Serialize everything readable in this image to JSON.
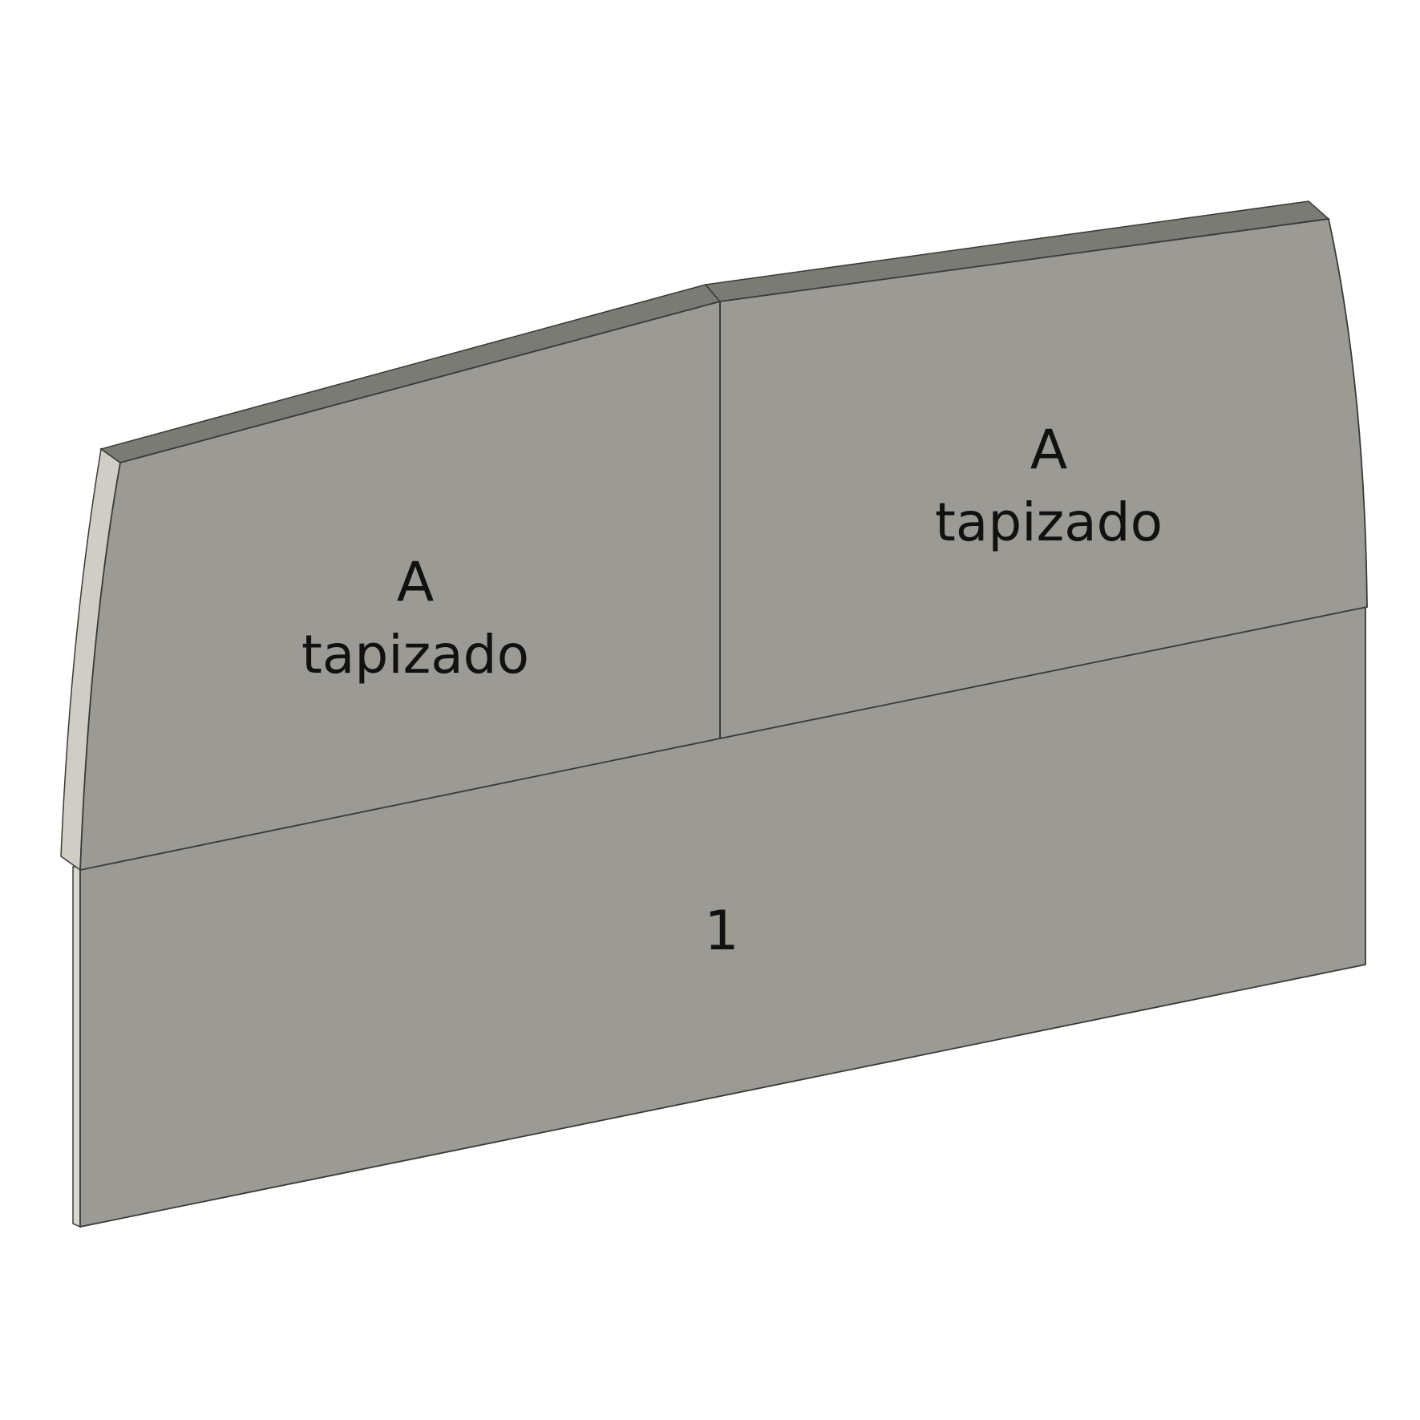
{
  "panels": {
    "left": {
      "code": "A",
      "material": "tapizado"
    },
    "right": {
      "code": "A",
      "material": "tapizado"
    },
    "base": {
      "number": "1"
    }
  },
  "colors": {
    "face": "#9b9a94",
    "top_edge": "#7a7b74",
    "side_edge": "#cfcdc5",
    "outline": "#3a3a36",
    "text": "#111111",
    "background": "#ffffff"
  }
}
